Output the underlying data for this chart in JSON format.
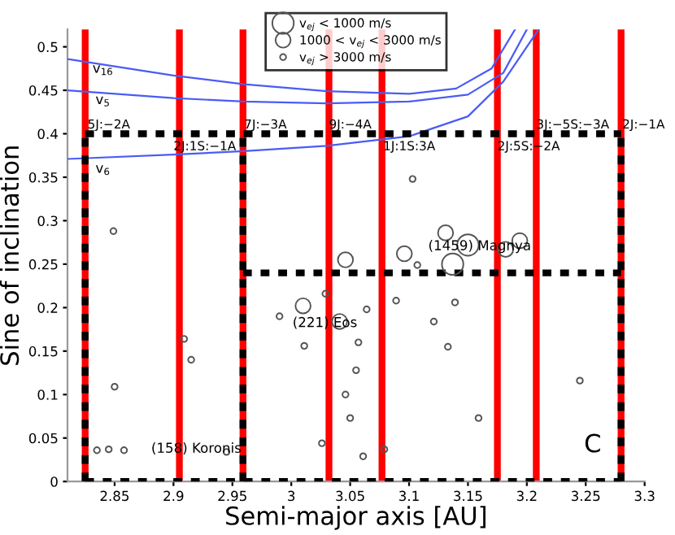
{
  "chart_data": {
    "type": "bubble",
    "xlabel": "Semi-major axis [AU]",
    "ylabel": "Sine of inclination",
    "xlim": [
      2.81,
      3.3
    ],
    "ylim": [
      0,
      0.52
    ],
    "xticks": [
      2.85,
      2.9,
      2.95,
      3,
      3.05,
      3.1,
      3.15,
      3.2,
      3.25,
      3.3
    ],
    "yticks": [
      0,
      0.05,
      0.1,
      0.15,
      0.2,
      0.25,
      0.3,
      0.35,
      0.4,
      0.45,
      0.5
    ],
    "legend": "top",
    "series": [
      {
        "name": "v$_{ej}$ < 1000 m/s",
        "marker": "circle",
        "color": "#555555",
        "x": [
          3.15,
          3.137
        ],
        "values": [
          0.272,
          0.25
        ],
        "sizes": [
          1,
          1
        ]
      },
      {
        "name": "1000 < v$_{ej}$ < 3000 m/s",
        "marker": "circle",
        "color": "#555555",
        "x": [
          3.046,
          3.096,
          3.131,
          3.182,
          3.194,
          3.01,
          3.041
        ],
        "values": [
          0.255,
          0.262,
          0.286,
          0.267,
          0.277,
          0.202,
          0.184
        ],
        "sizes": [
          0.5,
          0.5,
          0.5,
          0.5,
          0.5,
          0.5,
          0.5
        ]
      },
      {
        "name": "v$_{ej}$ > 3000 m/s",
        "marker": "circle",
        "color": "#555555",
        "x": [
          2.835,
          2.845,
          2.858,
          2.85,
          2.909,
          2.915,
          2.945,
          2.849,
          2.99,
          3.011,
          3.026,
          3.029,
          3.064,
          3.057,
          3.055,
          3.046,
          3.05,
          3.061,
          3.079,
          3.089,
          3.121,
          3.133,
          3.139,
          3.159,
          3.245,
          3.107,
          3.103
        ],
        "values": [
          0.036,
          0.037,
          0.036,
          0.109,
          0.164,
          0.14,
          0.034,
          0.288,
          0.19,
          0.156,
          0.044,
          0.216,
          0.198,
          0.16,
          0.128,
          0.1,
          0.073,
          0.029,
          0.037,
          0.208,
          0.184,
          0.155,
          0.206,
          0.073,
          0.116,
          0.249,
          0.348
        ],
        "sizes": [
          0.08,
          0.08,
          0.08,
          0.08,
          0.08,
          0.08,
          0.08,
          0.08,
          0.08,
          0.08,
          0.08,
          0.08,
          0.08,
          0.08,
          0.08,
          0.08,
          0.08,
          0.08,
          0.08,
          0.08,
          0.08,
          0.08,
          0.08,
          0.08,
          0.08,
          0.08,
          0.08
        ]
      },
      {
        "name": "v$_{16}$",
        "type": "line",
        "color": "#4a5cf5",
        "line_style": "solid",
        "x": [
          2.81,
          2.9,
          2.96,
          3.03,
          3.1,
          3.14,
          3.17,
          3.19
        ],
        "values": [
          0.486,
          0.467,
          0.457,
          0.449,
          0.446,
          0.452,
          0.475,
          0.52
        ]
      },
      {
        "name": "v$_{5}$",
        "type": "line",
        "color": "#4a5cf5",
        "line_style": "solid",
        "x": [
          2.81,
          2.9,
          2.96,
          3.03,
          3.1,
          3.15,
          3.18,
          3.2
        ],
        "values": [
          0.45,
          0.441,
          0.437,
          0.435,
          0.437,
          0.445,
          0.47,
          0.52
        ]
      },
      {
        "name": "v$_{6}$",
        "type": "line",
        "color": "#4a5cf5",
        "line_style": "solid",
        "x": [
          2.81,
          2.9,
          2.96,
          3.03,
          3.1,
          3.15,
          3.18,
          3.21
        ],
        "values": [
          0.371,
          0.376,
          0.38,
          0.386,
          0.397,
          0.42,
          0.46,
          0.52
        ]
      },
      {
        "type": "line",
        "color": "#000000",
        "line_style": "dashed",
        "x": [
          2.825,
          3.28
        ],
        "values": [
          0.4,
          0.4
        ]
      },
      {
        "type": "line",
        "color": "#000000",
        "line_style": "dashed",
        "x": [
          2.959,
          3.28
        ],
        "values": [
          0.24,
          0.24
        ]
      },
      {
        "type": "line",
        "color": "#000000",
        "line_style": "dashed",
        "x": [
          2.825,
          3.28
        ],
        "values": [
          0,
          0
        ]
      },
      {
        "type": "line",
        "color": "#000000",
        "line_style": "dashed",
        "x": [
          2.825,
          2.825
        ],
        "values": [
          0,
          0.4
        ]
      },
      {
        "type": "line",
        "color": "#000000",
        "line_style": "dashed",
        "x": [
          2.959,
          2.959
        ],
        "values": [
          0,
          0.4
        ]
      },
      {
        "type": "line",
        "color": "#000000",
        "line_style": "dashed",
        "x": [
          3.28,
          3.28
        ],
        "values": [
          0,
          0.4
        ]
      }
    ],
    "ref_lines": [
      {
        "axis": "x",
        "value": 2.825,
        "color": "#ff0000"
      },
      {
        "axis": "x",
        "value": 2.905,
        "color": "#ff0000"
      },
      {
        "axis": "x",
        "value": 2.959,
        "color": "#ff0000"
      },
      {
        "axis": "x",
        "value": 3.032,
        "color": "#ff0000"
      },
      {
        "axis": "x",
        "value": 3.077,
        "color": "#ff0000"
      },
      {
        "axis": "x",
        "value": 3.175,
        "color": "#ff0000"
      },
      {
        "axis": "x",
        "value": 3.208,
        "color": "#ff0000"
      },
      {
        "axis": "x",
        "value": 3.28,
        "color": "#ff0000"
      }
    ],
    "annotations": [
      {
        "text": "5J:−2A",
        "x": 2.827,
        "y": 0.41
      },
      {
        "text": "2J:1S:−1A",
        "x": 2.9,
        "y": 0.385
      },
      {
        "text": "7J:−3A",
        "x": 2.96,
        "y": 0.41
      },
      {
        "text": "9J:−4A",
        "x": 3.032,
        "y": 0.41
      },
      {
        "text": "1J:1S:3A",
        "x": 3.078,
        "y": 0.385
      },
      {
        "text": "2J:5S:−2A",
        "x": 3.175,
        "y": 0.385
      },
      {
        "text": "3J:−5S:−3A",
        "x": 3.208,
        "y": 0.41
      },
      {
        "text": "2J:−1A",
        "x": 3.281,
        "y": 0.41
      },
      "(158) Koronis",
      "(221) Eos",
      "(1459) Magnya",
      "C"
    ]
  }
}
